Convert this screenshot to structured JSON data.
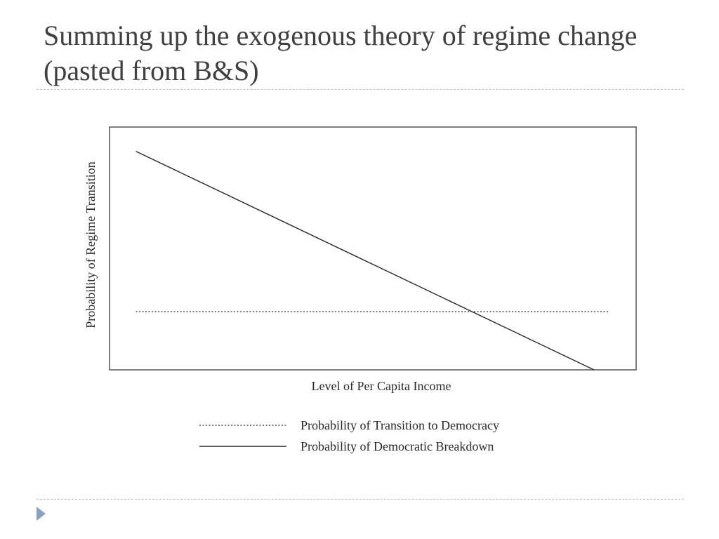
{
  "slide": {
    "title": "Summing up the exogenous theory of regime change (pasted from B&S)"
  },
  "colors": {
    "title_text": "#404040",
    "divider": "#b8c4d4",
    "nav_arrow": "#8aa2c2",
    "chart_ink": "#2a2a2a"
  },
  "icons": {
    "nav": "triangle-right-icon"
  },
  "chart_data": {
    "type": "line",
    "title": "",
    "xlabel": "Level of Per Capita Income",
    "ylabel": "Probability of Regime Transition",
    "xlim": [
      0,
      100
    ],
    "ylim": [
      0,
      100
    ],
    "grid": false,
    "legend_position": "bottom",
    "series": [
      {
        "name": "Probability of Transition to Democracy",
        "style": "dotted",
        "x": [
          5,
          95
        ],
        "y": [
          24,
          24
        ]
      },
      {
        "name": "Probability of Democratic Breakdown",
        "style": "solid",
        "x": [
          5,
          92
        ],
        "y": [
          90,
          0
        ]
      }
    ]
  }
}
